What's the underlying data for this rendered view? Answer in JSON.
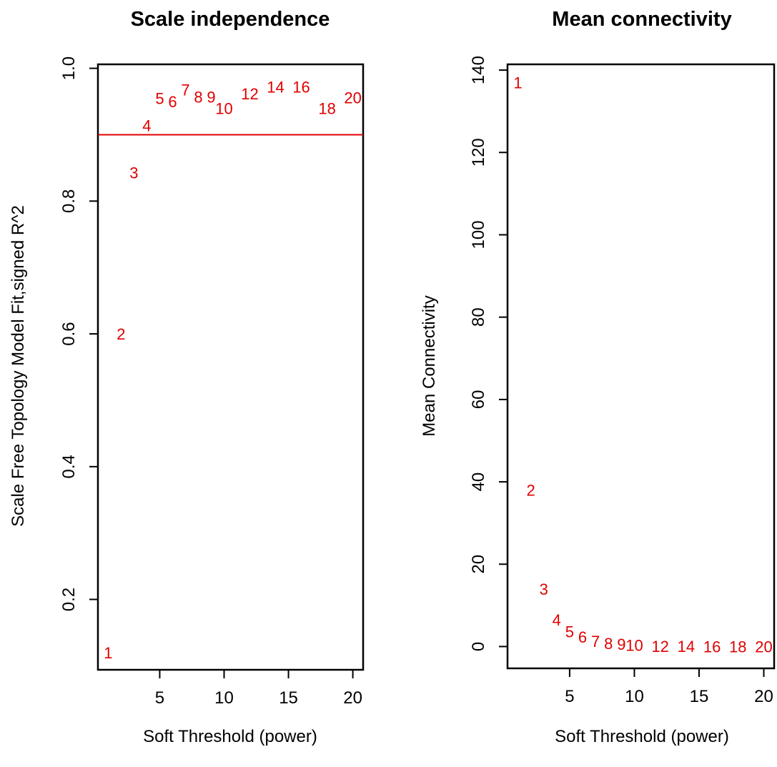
{
  "chart_data": [
    {
      "type": "scatter",
      "title": "Scale independence",
      "xlabel": "Soft Threshold (power)",
      "ylabel": "Scale Free Topology Model Fit,signed R^2",
      "xlim": [
        0.2,
        20.8
      ],
      "ylim": [
        0.094,
        1.006
      ],
      "xticks": [
        5,
        10,
        15,
        20
      ],
      "yticks": [
        0.2,
        0.4,
        0.6,
        0.8,
        1.0
      ],
      "ytick_labels": [
        "0.2",
        "0.4",
        "0.6",
        "0.8",
        "1.0"
      ],
      "marker": "text-label",
      "marker_color": "#e00000",
      "hline": 0.9,
      "hline_color": "#e00000",
      "points": [
        {
          "x": 1,
          "y": 0.12,
          "label": "1"
        },
        {
          "x": 2,
          "y": 0.6,
          "label": "2"
        },
        {
          "x": 3,
          "y": 0.843,
          "label": "3"
        },
        {
          "x": 4,
          "y": 0.914,
          "label": "4"
        },
        {
          "x": 5,
          "y": 0.955,
          "label": "5"
        },
        {
          "x": 6,
          "y": 0.95,
          "label": "6"
        },
        {
          "x": 7,
          "y": 0.968,
          "label": "7"
        },
        {
          "x": 8,
          "y": 0.957,
          "label": "8"
        },
        {
          "x": 9,
          "y": 0.957,
          "label": "9"
        },
        {
          "x": 10,
          "y": 0.94,
          "label": "10"
        },
        {
          "x": 12,
          "y": 0.962,
          "label": "12"
        },
        {
          "x": 14,
          "y": 0.972,
          "label": "14"
        },
        {
          "x": 16,
          "y": 0.972,
          "label": "16"
        },
        {
          "x": 18,
          "y": 0.94,
          "label": "18"
        },
        {
          "x": 20,
          "y": 0.956,
          "label": "20"
        }
      ]
    },
    {
      "type": "scatter",
      "title": "Mean connectivity",
      "xlabel": "Soft Threshold (power)",
      "ylabel": "Mean Connectivity",
      "xlim": [
        0.2,
        20.8
      ],
      "ylim": [
        -5.3,
        141.4
      ],
      "xticks": [
        5,
        10,
        15,
        20
      ],
      "yticks": [
        0,
        20,
        40,
        60,
        80,
        100,
        120,
        140
      ],
      "ytick_labels": [
        "0",
        "20",
        "40",
        "60",
        "80",
        "100",
        "120",
        "140"
      ],
      "marker": "text-label",
      "marker_color": "#e00000",
      "points": [
        {
          "x": 1,
          "y": 137,
          "label": "1"
        },
        {
          "x": 2,
          "y": 38,
          "label": "2"
        },
        {
          "x": 3,
          "y": 14,
          "label": "3"
        },
        {
          "x": 4,
          "y": 6.5,
          "label": "4"
        },
        {
          "x": 5,
          "y": 3.6,
          "label": "5"
        },
        {
          "x": 6,
          "y": 2.3,
          "label": "6"
        },
        {
          "x": 7,
          "y": 1.3,
          "label": "7"
        },
        {
          "x": 8,
          "y": 0.8,
          "label": "8"
        },
        {
          "x": 9,
          "y": 0.6,
          "label": "9"
        },
        {
          "x": 10,
          "y": 0.3,
          "label": "10"
        },
        {
          "x": 12,
          "y": 0.1,
          "label": "12"
        },
        {
          "x": 14,
          "y": 0.05,
          "label": "14"
        },
        {
          "x": 16,
          "y": 0.03,
          "label": "16"
        },
        {
          "x": 18,
          "y": 0.02,
          "label": "18"
        },
        {
          "x": 20,
          "y": 0.01,
          "label": "20"
        }
      ]
    }
  ]
}
